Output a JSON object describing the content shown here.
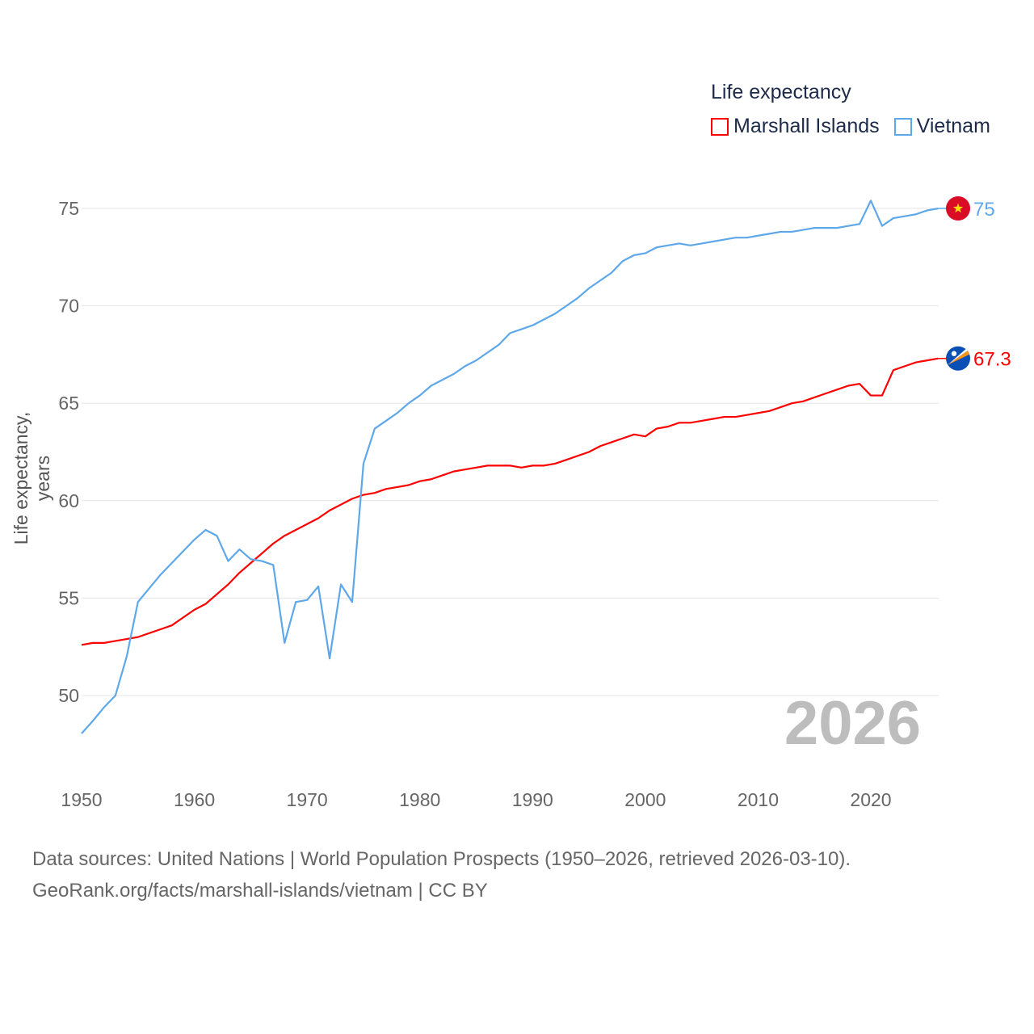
{
  "chart_data": {
    "type": "line",
    "title": "Life expectancy",
    "ylabel": "Life expectancy, years",
    "xlabel": "",
    "xlim": [
      1950,
      2026
    ],
    "ylim": [
      47.5,
      77
    ],
    "x_ticks": [
      1950,
      1960,
      1970,
      1980,
      1990,
      2000,
      2010,
      2020
    ],
    "y_ticks": [
      50,
      55,
      60,
      65,
      70,
      75
    ],
    "grid": true,
    "legend_position": "top-right",
    "current_year_label": "2026",
    "x": [
      1950,
      1951,
      1952,
      1953,
      1954,
      1955,
      1956,
      1957,
      1958,
      1959,
      1960,
      1961,
      1962,
      1963,
      1964,
      1965,
      1966,
      1967,
      1968,
      1969,
      1970,
      1971,
      1972,
      1973,
      1974,
      1975,
      1976,
      1977,
      1978,
      1979,
      1980,
      1981,
      1982,
      1983,
      1984,
      1985,
      1986,
      1987,
      1988,
      1989,
      1990,
      1991,
      1992,
      1993,
      1994,
      1995,
      1996,
      1997,
      1998,
      1999,
      2000,
      2001,
      2002,
      2003,
      2004,
      2005,
      2006,
      2007,
      2008,
      2009,
      2010,
      2011,
      2012,
      2013,
      2014,
      2015,
      2016,
      2017,
      2018,
      2019,
      2020,
      2021,
      2022,
      2023,
      2024,
      2025,
      2026
    ],
    "series": [
      {
        "name": "Marshall Islands",
        "color": "#ff0000",
        "end_label": "67.3",
        "values": [
          52.6,
          52.7,
          52.7,
          52.8,
          52.9,
          53.0,
          53.2,
          53.4,
          53.6,
          54.0,
          54.4,
          54.7,
          55.2,
          55.7,
          56.3,
          56.8,
          57.3,
          57.8,
          58.2,
          58.5,
          58.8,
          59.1,
          59.5,
          59.8,
          60.1,
          60.3,
          60.4,
          60.6,
          60.7,
          60.8,
          61.0,
          61.1,
          61.3,
          61.5,
          61.6,
          61.7,
          61.8,
          61.8,
          61.8,
          61.7,
          61.8,
          61.8,
          61.9,
          62.1,
          62.3,
          62.5,
          62.8,
          63.0,
          63.2,
          63.4,
          63.3,
          63.7,
          63.8,
          64.0,
          64.0,
          64.1,
          64.2,
          64.3,
          64.3,
          64.4,
          64.5,
          64.6,
          64.8,
          65.0,
          65.1,
          65.3,
          65.5,
          65.7,
          65.9,
          66.0,
          65.4,
          65.4,
          66.7,
          66.9,
          67.1,
          67.2,
          67.3
        ]
      },
      {
        "name": "Vietnam",
        "color": "#5ea8ea",
        "end_label": "75",
        "values": [
          48.05,
          48.7,
          49.4,
          50.0,
          52.0,
          54.8,
          55.5,
          56.2,
          56.8,
          57.4,
          58.0,
          58.5,
          58.2,
          56.9,
          57.5,
          57.0,
          56.9,
          56.7,
          52.7,
          54.8,
          54.9,
          55.6,
          51.9,
          55.7,
          54.8,
          61.9,
          63.7,
          64.1,
          64.5,
          65.0,
          65.4,
          65.9,
          66.2,
          66.5,
          66.9,
          67.2,
          67.6,
          68.0,
          68.6,
          68.8,
          69.0,
          69.3,
          69.6,
          70.0,
          70.4,
          70.9,
          71.3,
          71.7,
          72.3,
          72.6,
          72.7,
          73.0,
          73.1,
          73.2,
          73.1,
          73.2,
          73.3,
          73.4,
          73.5,
          73.5,
          73.6,
          73.7,
          73.8,
          73.8,
          73.9,
          74.0,
          74.0,
          74.0,
          74.1,
          74.2,
          75.4,
          74.1,
          74.5,
          74.6,
          74.7,
          74.9,
          75.0
        ]
      }
    ]
  },
  "legend": {
    "title": "Life expectancy",
    "items": [
      "Marshall Islands",
      "Vietnam"
    ]
  },
  "footer": {
    "source_line": "Data sources: United Nations | World Population Prospects (1950–2026, retrieved 2026-03-10).",
    "url_line": "GeoRank.org/facts/marshall-islands/vietnam | CC BY"
  }
}
